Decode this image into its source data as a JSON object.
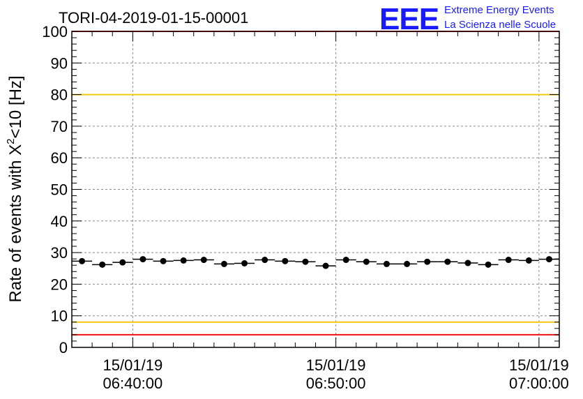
{
  "title": "TORI-04-2019-01-15-00001",
  "logo": {
    "mark": "EEE",
    "line1": "Extreme Energy Events",
    "line2": "La Scienza nelle Scuole",
    "color": "#1a1aff"
  },
  "chart_data": {
    "type": "scatter",
    "title": "TORI-04-2019-01-15-00001",
    "xlabel": "",
    "ylabel": {
      "prefix": "Rate of events with X",
      "superscript": "2",
      "suffix": "<10 [Hz]"
    },
    "ylim": [
      0,
      100
    ],
    "y_ticks": [
      0,
      10,
      20,
      30,
      40,
      50,
      60,
      70,
      80,
      90,
      100
    ],
    "xlim": [
      "2019-01-15 06:37:00",
      "2019-01-15 07:01:00"
    ],
    "x_ticks": [
      {
        "value": "2019-01-15 06:40:00",
        "date": "15/01/19",
        "time": "06:40:00"
      },
      {
        "value": "2019-01-15 06:50:00",
        "date": "15/01/19",
        "time": "06:50:00"
      },
      {
        "value": "2019-01-15 07:00:00",
        "date": "15/01/19",
        "time": "07:00:00"
      }
    ],
    "grid": true,
    "points": [
      {
        "x": "2019-01-15 06:37:30",
        "y": 27.3
      },
      {
        "x": "2019-01-15 06:38:30",
        "y": 26.2
      },
      {
        "x": "2019-01-15 06:39:30",
        "y": 26.9
      },
      {
        "x": "2019-01-15 06:40:30",
        "y": 27.9
      },
      {
        "x": "2019-01-15 06:41:30",
        "y": 27.3
      },
      {
        "x": "2019-01-15 06:42:30",
        "y": 27.5
      },
      {
        "x": "2019-01-15 06:43:30",
        "y": 27.7
      },
      {
        "x": "2019-01-15 06:44:30",
        "y": 26.4
      },
      {
        "x": "2019-01-15 06:45:30",
        "y": 26.6
      },
      {
        "x": "2019-01-15 06:46:30",
        "y": 27.7
      },
      {
        "x": "2019-01-15 06:47:30",
        "y": 27.3
      },
      {
        "x": "2019-01-15 06:48:30",
        "y": 27.1
      },
      {
        "x": "2019-01-15 06:49:30",
        "y": 25.8
      },
      {
        "x": "2019-01-15 06:50:30",
        "y": 27.7
      },
      {
        "x": "2019-01-15 06:51:30",
        "y": 27.1
      },
      {
        "x": "2019-01-15 06:52:30",
        "y": 26.4
      },
      {
        "x": "2019-01-15 06:53:30",
        "y": 26.4
      },
      {
        "x": "2019-01-15 06:54:30",
        "y": 27.1
      },
      {
        "x": "2019-01-15 06:55:30",
        "y": 27.1
      },
      {
        "x": "2019-01-15 06:56:30",
        "y": 26.7
      },
      {
        "x": "2019-01-15 06:57:30",
        "y": 26.2
      },
      {
        "x": "2019-01-15 06:58:30",
        "y": 27.7
      },
      {
        "x": "2019-01-15 06:59:30",
        "y": 27.5
      },
      {
        "x": "2019-01-15 07:00:30",
        "y": 27.9
      }
    ],
    "bin_width_minutes": 1,
    "reference_lines": [
      {
        "y": 100,
        "color": "#ee1111"
      },
      {
        "y": 80,
        "color": "#f0c814"
      },
      {
        "y": 8,
        "color": "#f0c814"
      },
      {
        "y": 4,
        "color": "#ee1111"
      }
    ],
    "colors": {
      "points": "#000000",
      "grid": "#888888",
      "frame": "#000000"
    }
  }
}
